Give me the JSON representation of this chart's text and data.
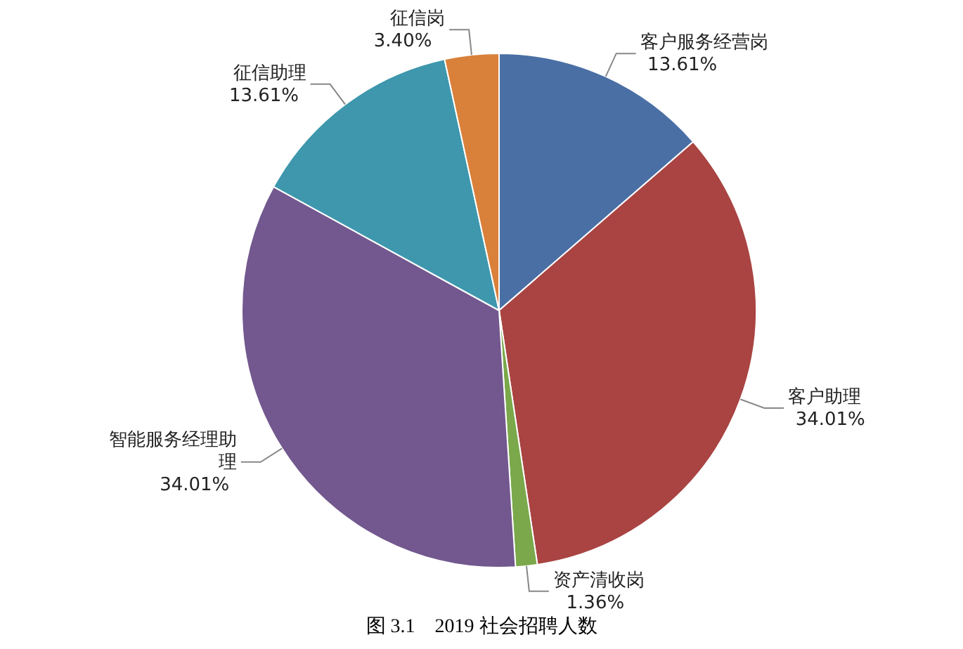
{
  "chart_data": {
    "type": "pie",
    "title": "图 3.1　2019 社会招聘人数",
    "categories": [
      "客户服务经营岗",
      "客户助理",
      "资产清收岗",
      "智能服务经理助理",
      "征信助理",
      "征信岗"
    ],
    "values": [
      13.61,
      34.01,
      1.36,
      34.01,
      13.61,
      3.4
    ],
    "value_labels": [
      "13.61%",
      "34.01%",
      "1.36%",
      "34.01%",
      "13.61%",
      "3.40%"
    ],
    "colors": [
      "#4a6fa5",
      "#a94442",
      "#7aa84a",
      "#72588e",
      "#3e97ad",
      "#d9803a"
    ]
  }
}
